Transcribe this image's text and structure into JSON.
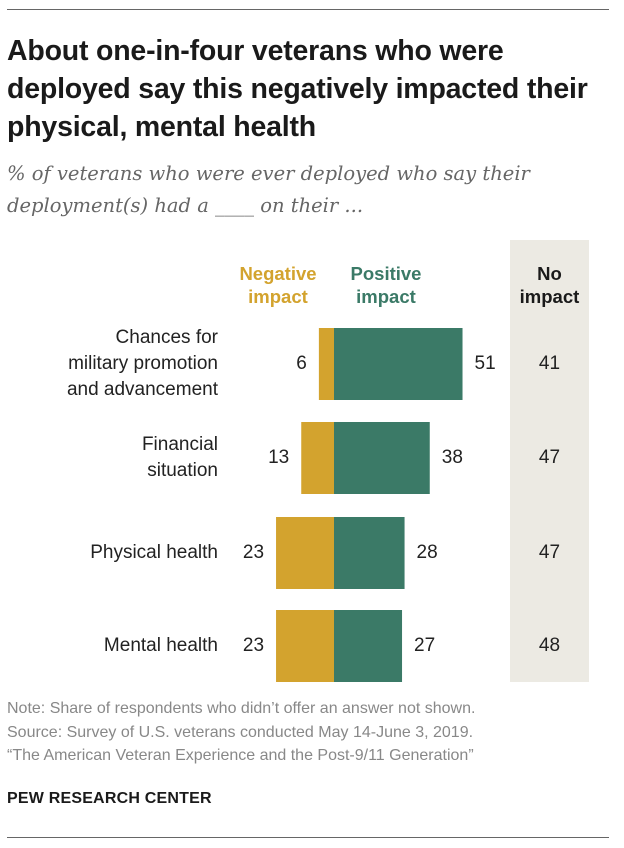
{
  "title": "About one-in-four veterans who were deployed say this negatively impacted their physical, mental health",
  "subtitle_lines": [
    "% of veterans who were ever deployed who say their",
    "deployment(s) had a ____ on their ..."
  ],
  "colors": {
    "negative": "#d3a32e",
    "positive": "#3b7a67",
    "no_impact_band": "#eceae3"
  },
  "chart_data": {
    "type": "bar",
    "orientation": "horizontal-diverging",
    "categories": [
      [
        "Chances for",
        "military promotion",
        "and advancement"
      ],
      [
        "Financial",
        "situation"
      ],
      [
        "Physical health"
      ],
      [
        "Mental health"
      ]
    ],
    "series": [
      {
        "name": "Negative impact",
        "name_lines": [
          "Negative",
          "impact"
        ],
        "values": [
          6,
          13,
          23,
          23
        ]
      },
      {
        "name": "Positive impact",
        "name_lines": [
          "Positive",
          "impact"
        ],
        "values": [
          51,
          38,
          28,
          27
        ]
      }
    ],
    "no_impact": {
      "name_lines": [
        "No",
        "impact"
      ],
      "values": [
        41,
        47,
        47,
        48
      ]
    }
  },
  "notes": [
    "Note: Share of respondents who didn’t offer an answer not shown.",
    "Source: Survey of U.S. veterans conducted May 14-June 3, 2019.",
    "“The American Veteran Experience and the Post-9/11 Generation”"
  ],
  "brand": "PEW RESEARCH CENTER"
}
